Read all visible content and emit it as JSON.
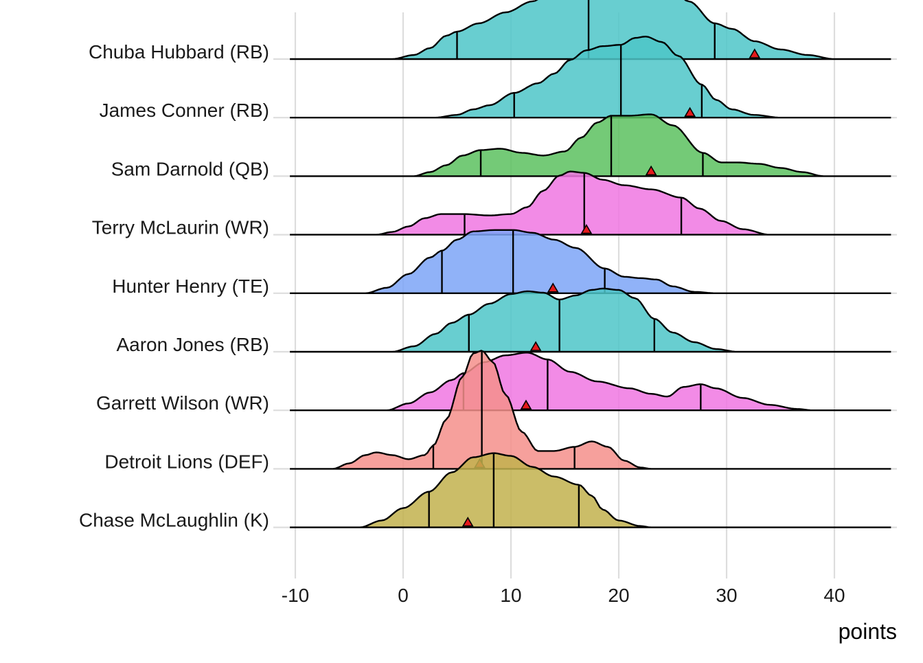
{
  "chart_data": {
    "type": "ridgeline",
    "title": "",
    "xlabel": "points",
    "ylabel": "",
    "xlim": [
      -11,
      45
    ],
    "x_ticks": [
      -10,
      0,
      10,
      20,
      30,
      40
    ],
    "x_tick_labels": [
      "-10",
      "0",
      "10",
      "20",
      "30",
      "40"
    ],
    "grid": true,
    "legend": "none",
    "marker_shape": "triangle",
    "marker_color": "#e41a1c",
    "quantile_lines": 3,
    "players": [
      {
        "name": "Chuba Hubbard (RB)",
        "color": "#4dc6c8",
        "quantiles": [
          5,
          17.2,
          28.9
        ],
        "marker": 32.6,
        "density": [
          [
            -1,
            0.0
          ],
          [
            1,
            0.03
          ],
          [
            2.5,
            0.08
          ],
          [
            4,
            0.17
          ],
          [
            5,
            0.2
          ],
          [
            7,
            0.26
          ],
          [
            9.5,
            0.34
          ],
          [
            12,
            0.42
          ],
          [
            14,
            0.52
          ],
          [
            15.5,
            0.56
          ],
          [
            17.2,
            0.55
          ],
          [
            19,
            0.48
          ],
          [
            20.5,
            0.44
          ],
          [
            22,
            0.47
          ],
          [
            23.5,
            0.51
          ],
          [
            25,
            0.5
          ],
          [
            26.5,
            0.42
          ],
          [
            28.9,
            0.26
          ],
          [
            30.5,
            0.22
          ],
          [
            32.6,
            0.13
          ],
          [
            35,
            0.07
          ],
          [
            37.5,
            0.03
          ],
          [
            40,
            0.0
          ]
        ]
      },
      {
        "name": "James Conner (RB)",
        "color": "#4dc6c8",
        "quantiles": [
          10.3,
          20.2,
          27.7
        ],
        "marker": 26.6,
        "density": [
          [
            3,
            0.0
          ],
          [
            5,
            0.02
          ],
          [
            6.5,
            0.06
          ],
          [
            8,
            0.09
          ],
          [
            10.3,
            0.18
          ],
          [
            12.5,
            0.25
          ],
          [
            14,
            0.32
          ],
          [
            15.5,
            0.42
          ],
          [
            17,
            0.49
          ],
          [
            18.5,
            0.52
          ],
          [
            20.2,
            0.53
          ],
          [
            21.5,
            0.58
          ],
          [
            22.5,
            0.59
          ],
          [
            24,
            0.55
          ],
          [
            25.5,
            0.45
          ],
          [
            27.7,
            0.24
          ],
          [
            29,
            0.13
          ],
          [
            30.5,
            0.06
          ],
          [
            32.5,
            0.02
          ],
          [
            35,
            0.0
          ]
        ]
      },
      {
        "name": "Sam Darnold (QB)",
        "color": "#5cc15f",
        "quantiles": [
          7.2,
          19.3,
          27.8
        ],
        "marker": 23.0,
        "density": [
          [
            1,
            0.0
          ],
          [
            2.5,
            0.03
          ],
          [
            4,
            0.08
          ],
          [
            5.5,
            0.15
          ],
          [
            7.2,
            0.19
          ],
          [
            9,
            0.2
          ],
          [
            11,
            0.17
          ],
          [
            13,
            0.15
          ],
          [
            15,
            0.18
          ],
          [
            16.5,
            0.28
          ],
          [
            18,
            0.39
          ],
          [
            19.3,
            0.44
          ],
          [
            21,
            0.44
          ],
          [
            23,
            0.45
          ],
          [
            25,
            0.37
          ],
          [
            27.8,
            0.17
          ],
          [
            29.5,
            0.1
          ],
          [
            31,
            0.1
          ],
          [
            33,
            0.09
          ],
          [
            35,
            0.06
          ],
          [
            37,
            0.03
          ],
          [
            39,
            0.0
          ]
        ]
      },
      {
        "name": "Terry McLaurin (WR)",
        "color": "#f077e2",
        "quantiles": [
          5.7,
          16.8,
          25.8
        ],
        "marker": 17.0,
        "density": [
          [
            -2.5,
            0.0
          ],
          [
            -1,
            0.02
          ],
          [
            0.5,
            0.06
          ],
          [
            2,
            0.12
          ],
          [
            3.5,
            0.15
          ],
          [
            5.7,
            0.15
          ],
          [
            8,
            0.14
          ],
          [
            10,
            0.15
          ],
          [
            11.5,
            0.2
          ],
          [
            13,
            0.32
          ],
          [
            14.5,
            0.43
          ],
          [
            15.5,
            0.46
          ],
          [
            16.8,
            0.45
          ],
          [
            18.5,
            0.4
          ],
          [
            20.5,
            0.36
          ],
          [
            23,
            0.33
          ],
          [
            25.8,
            0.27
          ],
          [
            27.5,
            0.19
          ],
          [
            29.5,
            0.1
          ],
          [
            31.5,
            0.04
          ],
          [
            34,
            0.0
          ]
        ]
      },
      {
        "name": "Hunter Henry (TE)",
        "color": "#7ca4f7",
        "quantiles": [
          3.6,
          10.2,
          18.7
        ],
        "marker": 13.9,
        "density": [
          [
            -3.5,
            0.0
          ],
          [
            -1.5,
            0.04
          ],
          [
            0.5,
            0.14
          ],
          [
            2.5,
            0.26
          ],
          [
            3.6,
            0.31
          ],
          [
            5,
            0.39
          ],
          [
            6.5,
            0.45
          ],
          [
            8.5,
            0.46
          ],
          [
            10.2,
            0.46
          ],
          [
            12,
            0.44
          ],
          [
            14,
            0.39
          ],
          [
            16,
            0.33
          ],
          [
            18.7,
            0.18
          ],
          [
            20.5,
            0.12
          ],
          [
            22,
            0.11
          ],
          [
            23.5,
            0.1
          ],
          [
            25,
            0.05
          ],
          [
            27,
            0.01
          ],
          [
            29,
            0.0
          ]
        ]
      },
      {
        "name": "Aaron Jones (RB)",
        "color": "#4dc6c8",
        "quantiles": [
          6.1,
          14.5,
          23.3
        ],
        "marker": 12.3,
        "density": [
          [
            -1,
            0.0
          ],
          [
            1,
            0.04
          ],
          [
            3,
            0.13
          ],
          [
            4.5,
            0.21
          ],
          [
            6.1,
            0.27
          ],
          [
            8,
            0.35
          ],
          [
            10,
            0.42
          ],
          [
            11.5,
            0.44
          ],
          [
            13,
            0.43
          ],
          [
            14.5,
            0.38
          ],
          [
            16,
            0.41
          ],
          [
            17.5,
            0.45
          ],
          [
            18.5,
            0.46
          ],
          [
            20,
            0.45
          ],
          [
            21.5,
            0.39
          ],
          [
            23.3,
            0.24
          ],
          [
            25,
            0.14
          ],
          [
            27,
            0.07
          ],
          [
            29,
            0.02
          ],
          [
            31,
            0.0
          ]
        ]
      },
      {
        "name": "Garrett Wilson (WR)",
        "color": "#f077e2",
        "quantiles": [
          5.6,
          13.4,
          27.6
        ],
        "marker": 11.4,
        "density": [
          [
            -1.5,
            0.0
          ],
          [
            0.5,
            0.05
          ],
          [
            2.5,
            0.13
          ],
          [
            4.5,
            0.22
          ],
          [
            5.6,
            0.27
          ],
          [
            7.5,
            0.35
          ],
          [
            9.5,
            0.4
          ],
          [
            11.5,
            0.42
          ],
          [
            13.4,
            0.37
          ],
          [
            15.5,
            0.28
          ],
          [
            18,
            0.21
          ],
          [
            21,
            0.16
          ],
          [
            23,
            0.12
          ],
          [
            24.5,
            0.1
          ],
          [
            26,
            0.17
          ],
          [
            27.6,
            0.19
          ],
          [
            29,
            0.16
          ],
          [
            31.5,
            0.09
          ],
          [
            34,
            0.04
          ],
          [
            36.5,
            0.01
          ],
          [
            38,
            0.0
          ]
        ]
      },
      {
        "name": "Detroit Lions (DEF)",
        "color": "#f58f8b",
        "quantiles": [
          2.8,
          7.3,
          15.9
        ],
        "marker": 7.1,
        "density": [
          [
            -6.5,
            0.0
          ],
          [
            -5,
            0.04
          ],
          [
            -3.5,
            0.1
          ],
          [
            -2.5,
            0.12
          ],
          [
            -1,
            0.1
          ],
          [
            0.5,
            0.07
          ],
          [
            2,
            0.1
          ],
          [
            2.8,
            0.17
          ],
          [
            4,
            0.36
          ],
          [
            5.5,
            0.67
          ],
          [
            6.5,
            0.84
          ],
          [
            7.3,
            0.86
          ],
          [
            8.3,
            0.78
          ],
          [
            9.5,
            0.54
          ],
          [
            11,
            0.27
          ],
          [
            12.5,
            0.13
          ],
          [
            14,
            0.13
          ],
          [
            15.9,
            0.16
          ],
          [
            17.5,
            0.2
          ],
          [
            19,
            0.16
          ],
          [
            20.5,
            0.06
          ],
          [
            22,
            0.01
          ],
          [
            23,
            0.0
          ]
        ]
      },
      {
        "name": "Chase McLaughlin (K)",
        "color": "#c2b14e",
        "quantiles": [
          2.4,
          8.4,
          16.3
        ],
        "marker": 6.0,
        "density": [
          [
            -4,
            0.0
          ],
          [
            -2,
            0.05
          ],
          [
            0,
            0.14
          ],
          [
            2.4,
            0.26
          ],
          [
            4.5,
            0.4
          ],
          [
            6.5,
            0.51
          ],
          [
            8.4,
            0.54
          ],
          [
            10,
            0.52
          ],
          [
            12,
            0.44
          ],
          [
            14,
            0.37
          ],
          [
            16.3,
            0.31
          ],
          [
            17.5,
            0.23
          ],
          [
            18.5,
            0.13
          ],
          [
            20,
            0.05
          ],
          [
            22,
            0.01
          ],
          [
            23,
            0.0
          ]
        ]
      }
    ]
  }
}
